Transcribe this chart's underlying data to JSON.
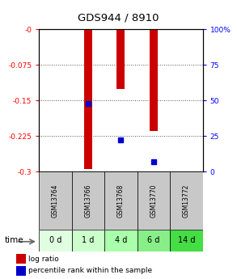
{
  "title": "GDS944 / 8910",
  "samples": [
    "GSM13764",
    "GSM13766",
    "GSM13768",
    "GSM13770",
    "GSM13772"
  ],
  "time_labels": [
    "0 d",
    "1 d",
    "4 d",
    "6 d",
    "14 d"
  ],
  "log_ratios": [
    0.0,
    -0.295,
    -0.125,
    -0.215,
    0.0
  ],
  "percentile_ranks": [
    null,
    48,
    22,
    7,
    null
  ],
  "bar_color": "#cc0000",
  "percentile_color": "#0000cc",
  "ylim_left": [
    -0.3,
    0.0
  ],
  "ylim_right": [
    0,
    100
  ],
  "yticks_left": [
    0.0,
    -0.075,
    -0.15,
    -0.225,
    -0.3
  ],
  "ytick_labels_left": [
    "-0",
    "-0.075",
    "-0.15",
    "-0.225",
    "-0.3"
  ],
  "yticks_right": [
    100,
    75,
    50,
    25,
    0
  ],
  "ytick_labels_right": [
    "100%",
    "75",
    "50",
    "25",
    "0"
  ],
  "grid_color": "#555555",
  "plot_bg": "#ffffff",
  "sample_bg": "#c8c8c8",
  "time_bg_colors": [
    "#e0ffe0",
    "#ccffcc",
    "#aaffaa",
    "#88ee88",
    "#44dd44"
  ],
  "bar_width": 0.25,
  "percentile_marker_size": 5
}
